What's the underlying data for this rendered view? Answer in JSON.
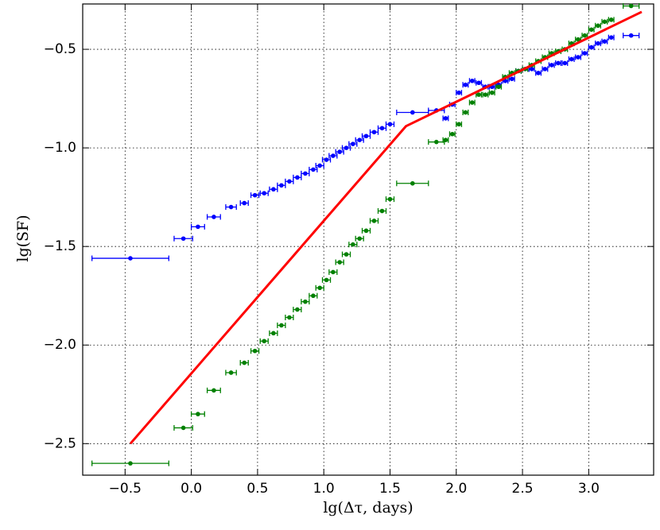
{
  "chart_data": {
    "type": "errorbar",
    "x_label": "lg(Δτ, days)",
    "y_label": "lg(SF)",
    "x": [
      -0.46,
      -0.06,
      0.05,
      0.17,
      0.3,
      0.4,
      0.48,
      0.55,
      0.62,
      0.68,
      0.74,
      0.8,
      0.86,
      0.92,
      0.97,
      1.02,
      1.07,
      1.12,
      1.17,
      1.22,
      1.27,
      1.32,
      1.38,
      1.44,
      1.5,
      1.67,
      1.85,
      1.92,
      1.97,
      2.02,
      2.07,
      2.12,
      2.17,
      2.22,
      2.27,
      2.32,
      2.37,
      2.42,
      2.47,
      2.52,
      2.57,
      2.62,
      2.67,
      2.72,
      2.77,
      2.82,
      2.87,
      2.92,
      2.97,
      3.02,
      3.07,
      3.12,
      3.17,
      3.32
    ],
    "xerr": [
      0.29,
      0.07,
      0.05,
      0.05,
      0.04,
      0.03,
      0.03,
      0.03,
      0.03,
      0.03,
      0.03,
      0.03,
      0.03,
      0.03,
      0.03,
      0.03,
      0.03,
      0.03,
      0.03,
      0.03,
      0.03,
      0.03,
      0.03,
      0.03,
      0.03,
      0.12,
      0.06,
      0.02,
      0.02,
      0.02,
      0.02,
      0.02,
      0.02,
      0.02,
      0.02,
      0.02,
      0.02,
      0.02,
      0.02,
      0.02,
      0.02,
      0.02,
      0.02,
      0.02,
      0.02,
      0.02,
      0.02,
      0.02,
      0.02,
      0.02,
      0.02,
      0.02,
      0.02,
      0.06
    ],
    "series": [
      {
        "color": "#0000ff",
        "values": [
          -1.56,
          -1.46,
          -1.4,
          -1.35,
          -1.3,
          -1.28,
          -1.24,
          -1.23,
          -1.21,
          -1.19,
          -1.17,
          -1.15,
          -1.13,
          -1.11,
          -1.09,
          -1.06,
          -1.04,
          -1.02,
          -1.0,
          -0.98,
          -0.96,
          -0.94,
          -0.92,
          -0.9,
          -0.88,
          -0.82,
          -0.81,
          -0.85,
          -0.78,
          -0.72,
          -0.68,
          -0.66,
          -0.67,
          -0.69,
          -0.69,
          -0.68,
          -0.66,
          -0.65,
          -0.61,
          -0.6,
          -0.6,
          -0.62,
          -0.6,
          -0.58,
          -0.57,
          -0.57,
          -0.55,
          -0.54,
          -0.52,
          -0.49,
          -0.47,
          -0.46,
          -0.44,
          -0.43
        ]
      },
      {
        "color": "#008000",
        "values": [
          -2.6,
          -2.42,
          -2.35,
          -2.23,
          -2.14,
          -2.09,
          -2.03,
          -1.98,
          -1.94,
          -1.9,
          -1.86,
          -1.82,
          -1.78,
          -1.75,
          -1.71,
          -1.67,
          -1.63,
          -1.58,
          -1.54,
          -1.49,
          -1.46,
          -1.42,
          -1.37,
          -1.32,
          -1.26,
          -1.18,
          -0.97,
          -0.96,
          -0.93,
          -0.88,
          -0.82,
          -0.77,
          -0.73,
          -0.73,
          -0.72,
          -0.69,
          -0.64,
          -0.62,
          -0.61,
          -0.6,
          -0.58,
          -0.56,
          -0.54,
          -0.52,
          -0.51,
          -0.5,
          -0.47,
          -0.45,
          -0.43,
          -0.4,
          -0.38,
          -0.36,
          -0.35,
          -0.28
        ]
      }
    ],
    "fit": {
      "color": "#ff0000",
      "x": [
        -0.46,
        1.62,
        3.4
      ],
      "y": [
        -2.5,
        -0.89,
        -0.31
      ]
    },
    "xlim": [
      -0.82,
      3.49
    ],
    "ylim": [
      -2.66,
      -0.27
    ],
    "xticks": [
      {
        "value": -0.5,
        "label": "−0.5"
      },
      {
        "value": 0,
        "label": "0.0"
      },
      {
        "value": 0.5,
        "label": "0.5"
      },
      {
        "value": 1,
        "label": "1.0"
      },
      {
        "value": 1.5,
        "label": "1.5"
      },
      {
        "value": 2,
        "label": "2.0"
      },
      {
        "value": 2.5,
        "label": "2.5"
      },
      {
        "value": 3,
        "label": "3.0"
      }
    ],
    "yticks": [
      {
        "value": -2.5,
        "label": "−2.5"
      },
      {
        "value": -2,
        "label": "−2.0"
      },
      {
        "value": -1.5,
        "label": "−1.5"
      },
      {
        "value": -1,
        "label": "−1.0"
      },
      {
        "value": -0.5,
        "label": "−0.5"
      }
    ],
    "grid": true
  }
}
